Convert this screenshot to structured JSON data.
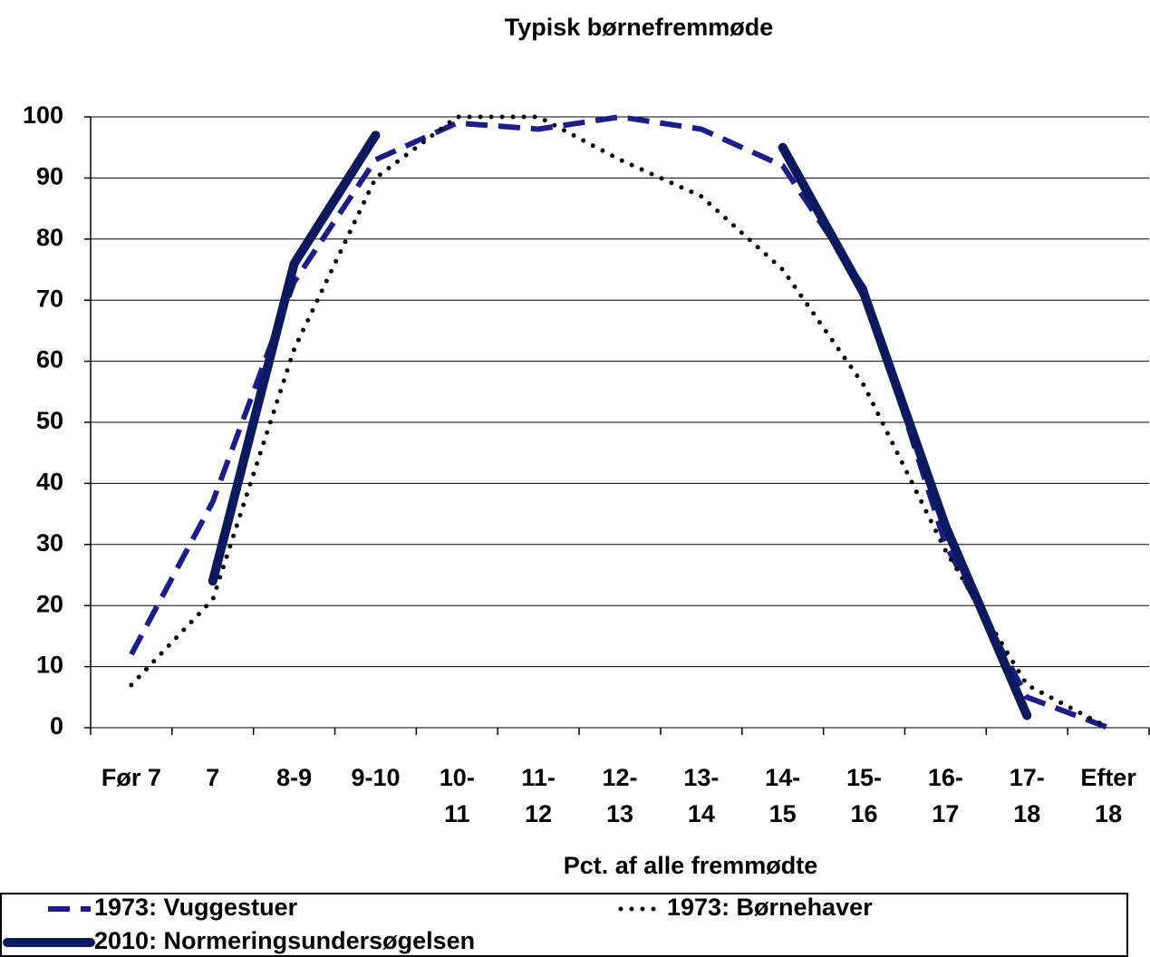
{
  "chart_data": {
    "type": "line",
    "title": "Typisk børnefremmøde",
    "x_label": "Pct. af  alle fremmødte",
    "categories": [
      "Før 7",
      "7",
      "8-9",
      "9-10",
      "10-\n11",
      "11-\n12",
      "12-\n13",
      "13-\n14",
      "14-\n15",
      "15-\n16",
      "16-\n17",
      "17-\n18",
      "Efter\n18"
    ],
    "series": [
      {
        "name": "1973: Vuggestuer",
        "color": "#1c1c8a",
        "style": "dashed",
        "values": [
          12,
          37,
          73,
          93,
          99,
          98,
          100,
          98,
          92,
          72,
          30,
          5,
          0
        ]
      },
      {
        "name": "1973: Børnehaver",
        "color": "#000000",
        "style": "dotted",
        "values": [
          7,
          21,
          62,
          90,
          100,
          100,
          93,
          87,
          75,
          56,
          29,
          7,
          0
        ]
      },
      {
        "name": "2010: Normeringsundersøgelsen",
        "color": "#0b1a5e",
        "style": "solid",
        "values": [
          null,
          24,
          76,
          97,
          null,
          null,
          null,
          null,
          95,
          71,
          33,
          2,
          null
        ]
      }
    ],
    "ylim": [
      0,
      100
    ],
    "yticks": [
      0,
      10,
      20,
      30,
      40,
      50,
      60,
      70,
      80,
      90,
      100
    ],
    "grid": true
  }
}
